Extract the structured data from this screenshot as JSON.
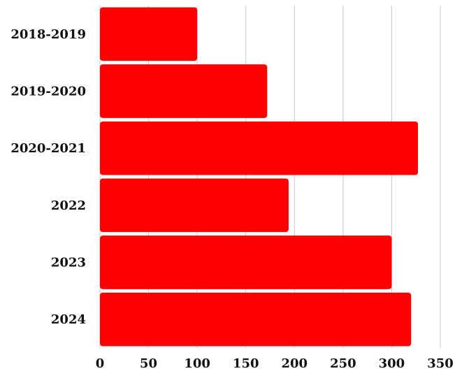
{
  "chart_data": {
    "type": "bar",
    "orientation": "horizontal",
    "categories": [
      "2018-2019",
      "2019-2020",
      "2020-2021",
      "2022",
      "2023",
      "2024"
    ],
    "values": [
      100,
      172,
      327,
      194,
      300,
      320
    ],
    "xlim": [
      0,
      350
    ],
    "xticks": [
      0,
      50,
      100,
      150,
      200,
      250,
      300,
      350
    ],
    "grid": true,
    "bar_color": "#ff0000",
    "title": "",
    "xlabel": "",
    "ylabel": ""
  }
}
